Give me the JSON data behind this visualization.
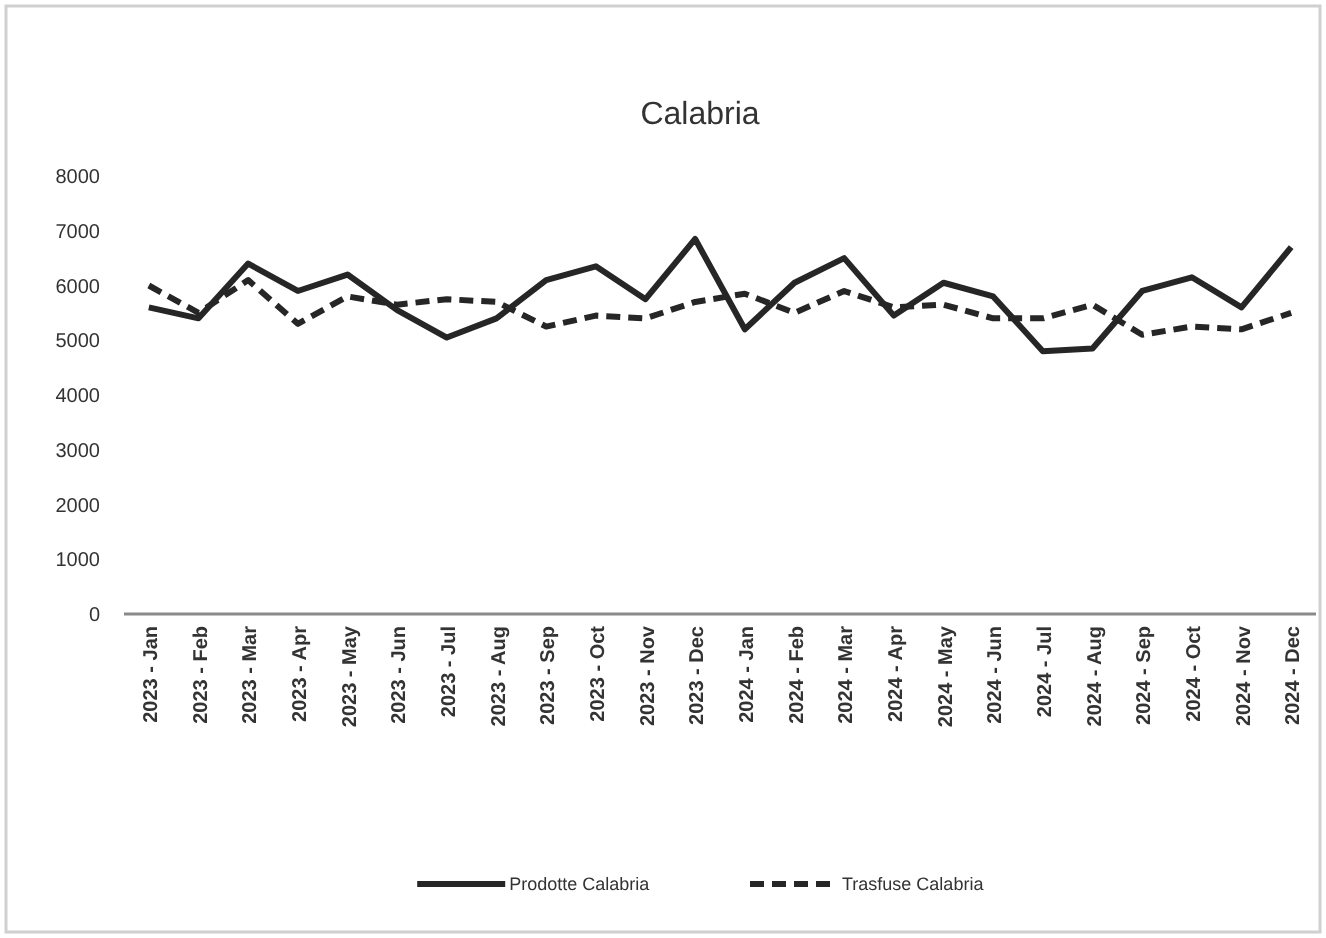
{
  "chart_data": {
    "type": "line",
    "title": "Calabria",
    "categories": [
      "2023 - Jan",
      "2023 - Feb",
      "2023 - Mar",
      "2023 - Apr",
      "2023 - May",
      "2023 - Jun",
      "2023 - Jul",
      "2023 - Aug",
      "2023 - Sep",
      "2023 - Oct",
      "2023 - Nov",
      "2023 - Dec",
      "2024 - Jan",
      "2024 - Feb",
      "2024 - Mar",
      "2024 - Apr",
      "2024 - May",
      "2024 - Jun",
      "2024 - Jul",
      "2024 - Aug",
      "2024 - Sep",
      "2024 - Oct",
      "2024 - Nov",
      "2024 - Dec"
    ],
    "series": [
      {
        "name": "Prodotte Calabria",
        "color": "#262626",
        "line_style": "solid",
        "values": [
          5600,
          5400,
          6400,
          5900,
          6200,
          5550,
          5050,
          5400,
          6100,
          6350,
          5750,
          6850,
          5200,
          6050,
          6500,
          5450,
          6050,
          5800,
          4800,
          4850,
          5900,
          6150,
          5600,
          6700
        ]
      },
      {
        "name": "Trasfuse Calabria",
        "color": "#262626",
        "line_style": "dashed",
        "values": [
          6000,
          5500,
          6100,
          5300,
          5800,
          5650,
          5750,
          5700,
          5250,
          5450,
          5400,
          5700,
          5850,
          5500,
          5900,
          5600,
          5650,
          5400,
          5400,
          5650,
          5100,
          5250,
          5200,
          5500
        ]
      }
    ],
    "ylim": [
      0,
      8000
    ],
    "yticks": [
      0,
      1000,
      2000,
      3000,
      4000,
      5000,
      6000,
      7000,
      8000
    ],
    "grid": false,
    "legend": "bottom"
  }
}
